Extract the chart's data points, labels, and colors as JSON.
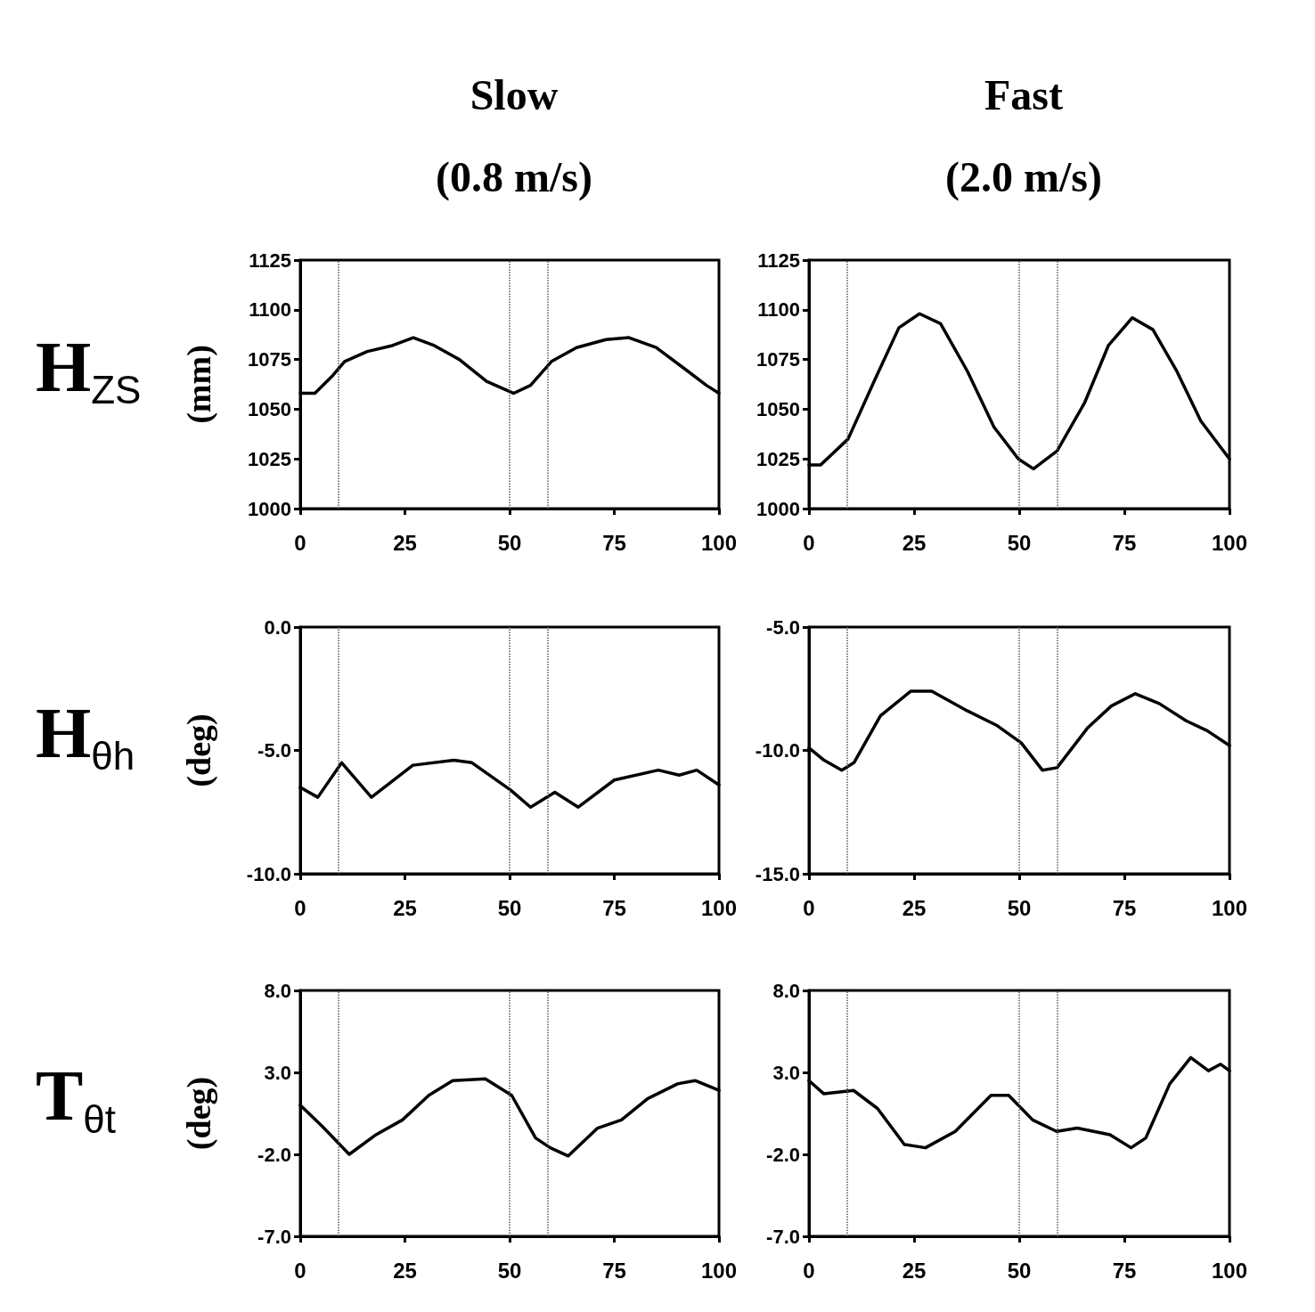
{
  "chart_data": [
    {
      "type": "line",
      "title": "Slow\n(0.8 m/s)",
      "ylabel": "(mm)",
      "annotations": [
        "H$_{ZS}$"
      ],
      "marker": "none",
      "line_style": "solid",
      "x": [
        0,
        3.5,
        7.8,
        10.6,
        16,
        22,
        27,
        32,
        38,
        44.5,
        51,
        55,
        60,
        66,
        73,
        78.5,
        85,
        92,
        97,
        100
      ],
      "series": [
        {
          "color": "#000000",
          "values": [
            1058,
            1058,
            1067,
            1074,
            1079,
            1082,
            1086,
            1082,
            1075,
            1064,
            1058,
            1062,
            1074,
            1081,
            1085,
            1086,
            1081,
            1070,
            1062,
            1058
          ]
        }
      ],
      "xlim": [
        0,
        100
      ],
      "xticks": [
        0,
        25,
        50,
        75,
        100
      ],
      "ylim": [
        1000,
        1125
      ],
      "yticks": [
        1000,
        1025,
        1050,
        1075,
        1100,
        1125
      ],
      "ref_lines": [
        {
          "axis": "x",
          "value": 9,
          "line_style": "dotted",
          "color": "#555555"
        },
        {
          "axis": "x",
          "value": 50,
          "line_style": "dotted",
          "color": "#555555"
        },
        {
          "axis": "x",
          "value": 59,
          "line_style": "dotted",
          "color": "#555555"
        }
      ]
    },
    {
      "type": "line",
      "title": "Fast\n(2.0 m/s)",
      "marker": "none",
      "line_style": "solid",
      "x": [
        0,
        2.8,
        9.3,
        15.7,
        21.4,
        26.3,
        31.3,
        37.7,
        44,
        49.8,
        53.4,
        59,
        65.5,
        71.2,
        76.9,
        81.8,
        87.5,
        93.2,
        100
      ],
      "series": [
        {
          "color": "#000000",
          "values": [
            1022,
            1022,
            1035,
            1065,
            1091,
            1098,
            1093,
            1069,
            1041,
            1025,
            1020,
            1029,
            1053,
            1082,
            1096,
            1090,
            1069,
            1044,
            1025
          ]
        }
      ],
      "xlim": [
        0,
        100
      ],
      "xticks": [
        0,
        25,
        50,
        75,
        100
      ],
      "ylim": [
        1000,
        1125
      ],
      "yticks": [
        1000,
        1025,
        1050,
        1075,
        1100,
        1125
      ],
      "ref_lines": [
        {
          "axis": "x",
          "value": 9,
          "line_style": "dotted",
          "color": "#555555"
        },
        {
          "axis": "x",
          "value": 50,
          "line_style": "dotted",
          "color": "#555555"
        },
        {
          "axis": "x",
          "value": 59,
          "line_style": "dotted",
          "color": "#555555"
        }
      ]
    },
    {
      "type": "line",
      "ylabel": "(deg)",
      "annotations": [
        "H$_{θh}$"
      ],
      "marker": "none",
      "line_style": "solid",
      "x": [
        0,
        4.2,
        9.9,
        17,
        26.9,
        36.7,
        41,
        50.2,
        55,
        60.8,
        66.4,
        75,
        85.5,
        90.5,
        94.7,
        100
      ],
      "series": [
        {
          "color": "#000000",
          "values": [
            -6.5,
            -6.9,
            -5.5,
            -6.9,
            -5.6,
            -5.4,
            -5.5,
            -6.6,
            -7.3,
            -6.7,
            -7.3,
            -6.2,
            -5.8,
            -6.0,
            -5.8,
            -6.4
          ]
        }
      ],
      "xlim": [
        0,
        100
      ],
      "xticks": [
        0,
        25,
        50,
        75,
        100
      ],
      "ylim": [
        -10,
        0
      ],
      "yticks": [
        {
          "value": -10,
          "label": "-10.0"
        },
        {
          "value": -5,
          "label": "-5.0"
        },
        {
          "value": 0,
          "label": "0.0"
        }
      ],
      "ref_lines": [
        {
          "axis": "x",
          "value": 9,
          "line_style": "dotted",
          "color": "#555555"
        },
        {
          "axis": "x",
          "value": 50,
          "line_style": "dotted",
          "color": "#555555"
        },
        {
          "axis": "x",
          "value": 59,
          "line_style": "dotted",
          "color": "#555555"
        }
      ]
    },
    {
      "type": "line",
      "marker": "none",
      "line_style": "solid",
      "x": [
        0,
        3.6,
        7.8,
        10.7,
        17,
        24.2,
        29.2,
        37.7,
        44.8,
        50.5,
        55.5,
        59,
        66.2,
        71.9,
        77.6,
        83.3,
        89.7,
        94.7,
        100
      ],
      "series": [
        {
          "color": "#000000",
          "values": [
            -9.9,
            -10.4,
            -10.8,
            -10.5,
            -8.6,
            -7.6,
            -7.6,
            -8.4,
            -9.0,
            -9.7,
            -10.8,
            -10.7,
            -9.1,
            -8.2,
            -7.7,
            -8.1,
            -8.8,
            -9.2,
            -9.8
          ]
        }
      ],
      "xlim": [
        0,
        100
      ],
      "xticks": [
        0,
        25,
        50,
        75,
        100
      ],
      "ylim": [
        -15,
        -5
      ],
      "yticks": [
        {
          "value": -15,
          "label": "-15.0"
        },
        {
          "value": -10,
          "label": "-10.0"
        },
        {
          "value": -5,
          "label": "-5.0"
        }
      ],
      "ref_lines": [
        {
          "axis": "x",
          "value": 9,
          "line_style": "dotted",
          "color": "#555555"
        },
        {
          "axis": "x",
          "value": 50,
          "line_style": "dotted",
          "color": "#555555"
        },
        {
          "axis": "x",
          "value": 59,
          "line_style": "dotted",
          "color": "#555555"
        }
      ]
    },
    {
      "type": "line",
      "ylabel": "(deg)",
      "annotations": [
        "T$_{θt}$"
      ],
      "marker": "none",
      "line_style": "solid",
      "x": [
        0,
        5.3,
        11.7,
        18.1,
        24.4,
        30.7,
        36.4,
        44.2,
        50.5,
        56.2,
        59.7,
        64,
        71,
        76.7,
        83,
        90.1,
        94.3,
        100
      ],
      "series": [
        {
          "color": "#000000",
          "values": [
            1.0,
            -0.3,
            -2.0,
            -0.8,
            0.1,
            1.6,
            2.5,
            2.6,
            1.6,
            -1.0,
            -1.6,
            -2.1,
            -0.4,
            0.1,
            1.4,
            2.3,
            2.5,
            1.9
          ]
        }
      ],
      "xlim": [
        0,
        100
      ],
      "xticks": [
        0,
        25,
        50,
        75,
        100
      ],
      "ylim": [
        -7,
        8
      ],
      "yticks": [
        {
          "value": -7,
          "label": "-7.0"
        },
        {
          "value": -2,
          "label": "-2.0"
        },
        {
          "value": 3,
          "label": "3.0"
        },
        {
          "value": 8,
          "label": "8.0"
        }
      ],
      "ref_lines": [
        {
          "axis": "x",
          "value": 9,
          "line_style": "dotted",
          "color": "#555555"
        },
        {
          "axis": "x",
          "value": 50,
          "line_style": "dotted",
          "color": "#555555"
        },
        {
          "axis": "x",
          "value": 59,
          "line_style": "dotted",
          "color": "#555555"
        }
      ]
    },
    {
      "type": "line",
      "marker": "none",
      "line_style": "solid",
      "x": [
        0,
        3.5,
        10.6,
        16.3,
        22.7,
        27.7,
        34.8,
        43.3,
        47.5,
        53.2,
        58.9,
        63.8,
        71.6,
        76.6,
        80.1,
        85.8,
        90.8,
        95,
        97.9,
        100
      ],
      "series": [
        {
          "color": "#000000",
          "values": [
            2.5,
            1.7,
            1.9,
            0.8,
            -1.4,
            -1.6,
            -0.6,
            1.6,
            1.6,
            0.1,
            -0.6,
            -0.4,
            -0.8,
            -1.6,
            -1.0,
            2.3,
            3.9,
            3.1,
            3.5,
            3.1
          ]
        }
      ],
      "xlim": [
        0,
        100
      ],
      "xticks": [
        0,
        25,
        50,
        75,
        100
      ],
      "ylim": [
        -7,
        8
      ],
      "yticks": [
        {
          "value": -7,
          "label": "-7.0"
        },
        {
          "value": -2,
          "label": "-2.0"
        },
        {
          "value": 3,
          "label": "3.0"
        },
        {
          "value": 8,
          "label": "8.0"
        }
      ],
      "ref_lines": [
        {
          "axis": "x",
          "value": 9,
          "line_style": "dotted",
          "color": "#555555"
        },
        {
          "axis": "x",
          "value": 50,
          "line_style": "dotted",
          "color": "#555555"
        },
        {
          "axis": "x",
          "value": 59,
          "line_style": "dotted",
          "color": "#555555"
        }
      ]
    }
  ]
}
